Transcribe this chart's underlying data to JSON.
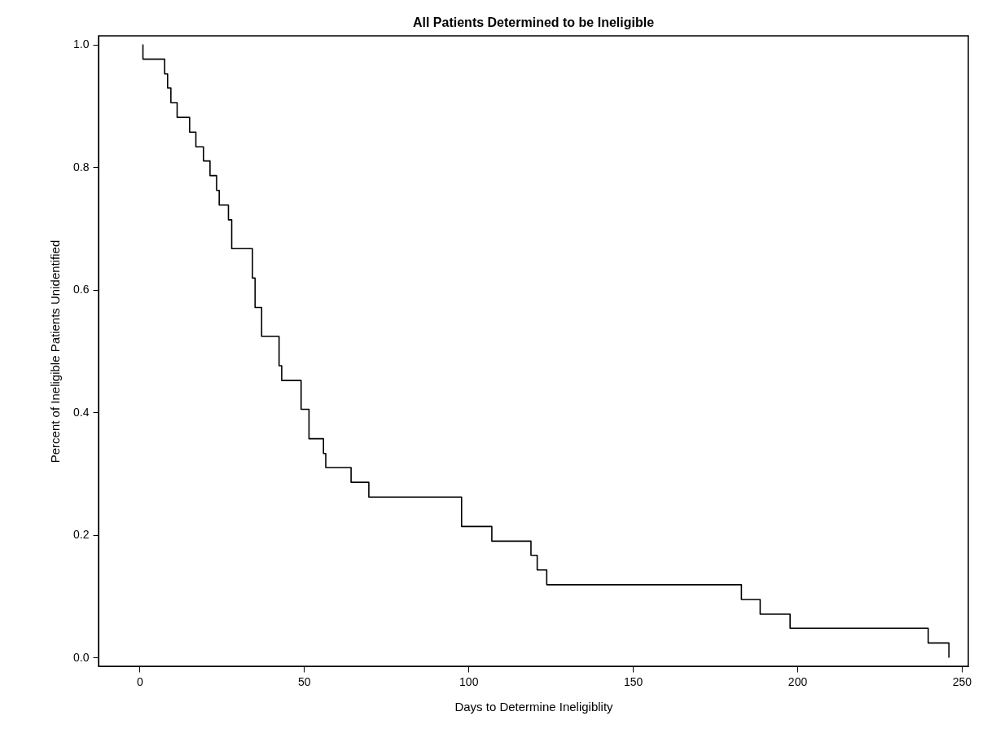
{
  "chart_data": {
    "type": "step",
    "title": "All Patients Determined to be Ineligible",
    "xlabel": "Days to Determine Ineligiblity",
    "ylabel": "Percent of Ineligible Patients Unidentified",
    "x": [
      1,
      1,
      7.6,
      8.5,
      9.5,
      11.4,
      15.2,
      17.1,
      19.4,
      21.4,
      23.4,
      24.2,
      27.0,
      28.0,
      34.3,
      35.1,
      37.1,
      42.4,
      43.2,
      49.1,
      51.5,
      55.9,
      56.6,
      64.3,
      69.7,
      97.9,
      107.1,
      119.0,
      120.9,
      123.8,
      183.0,
      188.7,
      197.8,
      239.8,
      246.1
    ],
    "series": [
      {
        "color": "#000000",
        "values": [
          1.0,
          0.976,
          0.952,
          0.929,
          0.905,
          0.881,
          0.857,
          0.833,
          0.81,
          0.786,
          0.762,
          0.738,
          0.714,
          0.667,
          0.619,
          0.571,
          0.524,
          0.476,
          0.452,
          0.405,
          0.357,
          0.333,
          0.31,
          0.286,
          0.262,
          0.214,
          0.19,
          0.167,
          0.143,
          0.119,
          0.095,
          0.071,
          0.048,
          0.024,
          0.0
        ]
      }
    ],
    "xlim": [
      -12.5,
      252
    ],
    "xticks": [
      0,
      50,
      100,
      150,
      200,
      250
    ],
    "ylim": [
      -0.014,
      1.014
    ],
    "yticks": [
      {
        "value": 0,
        "label": "0.0"
      },
      0.2,
      0.4,
      0.6,
      0.8,
      {
        "value": 1,
        "label": "1.0"
      }
    ],
    "grid": false
  }
}
